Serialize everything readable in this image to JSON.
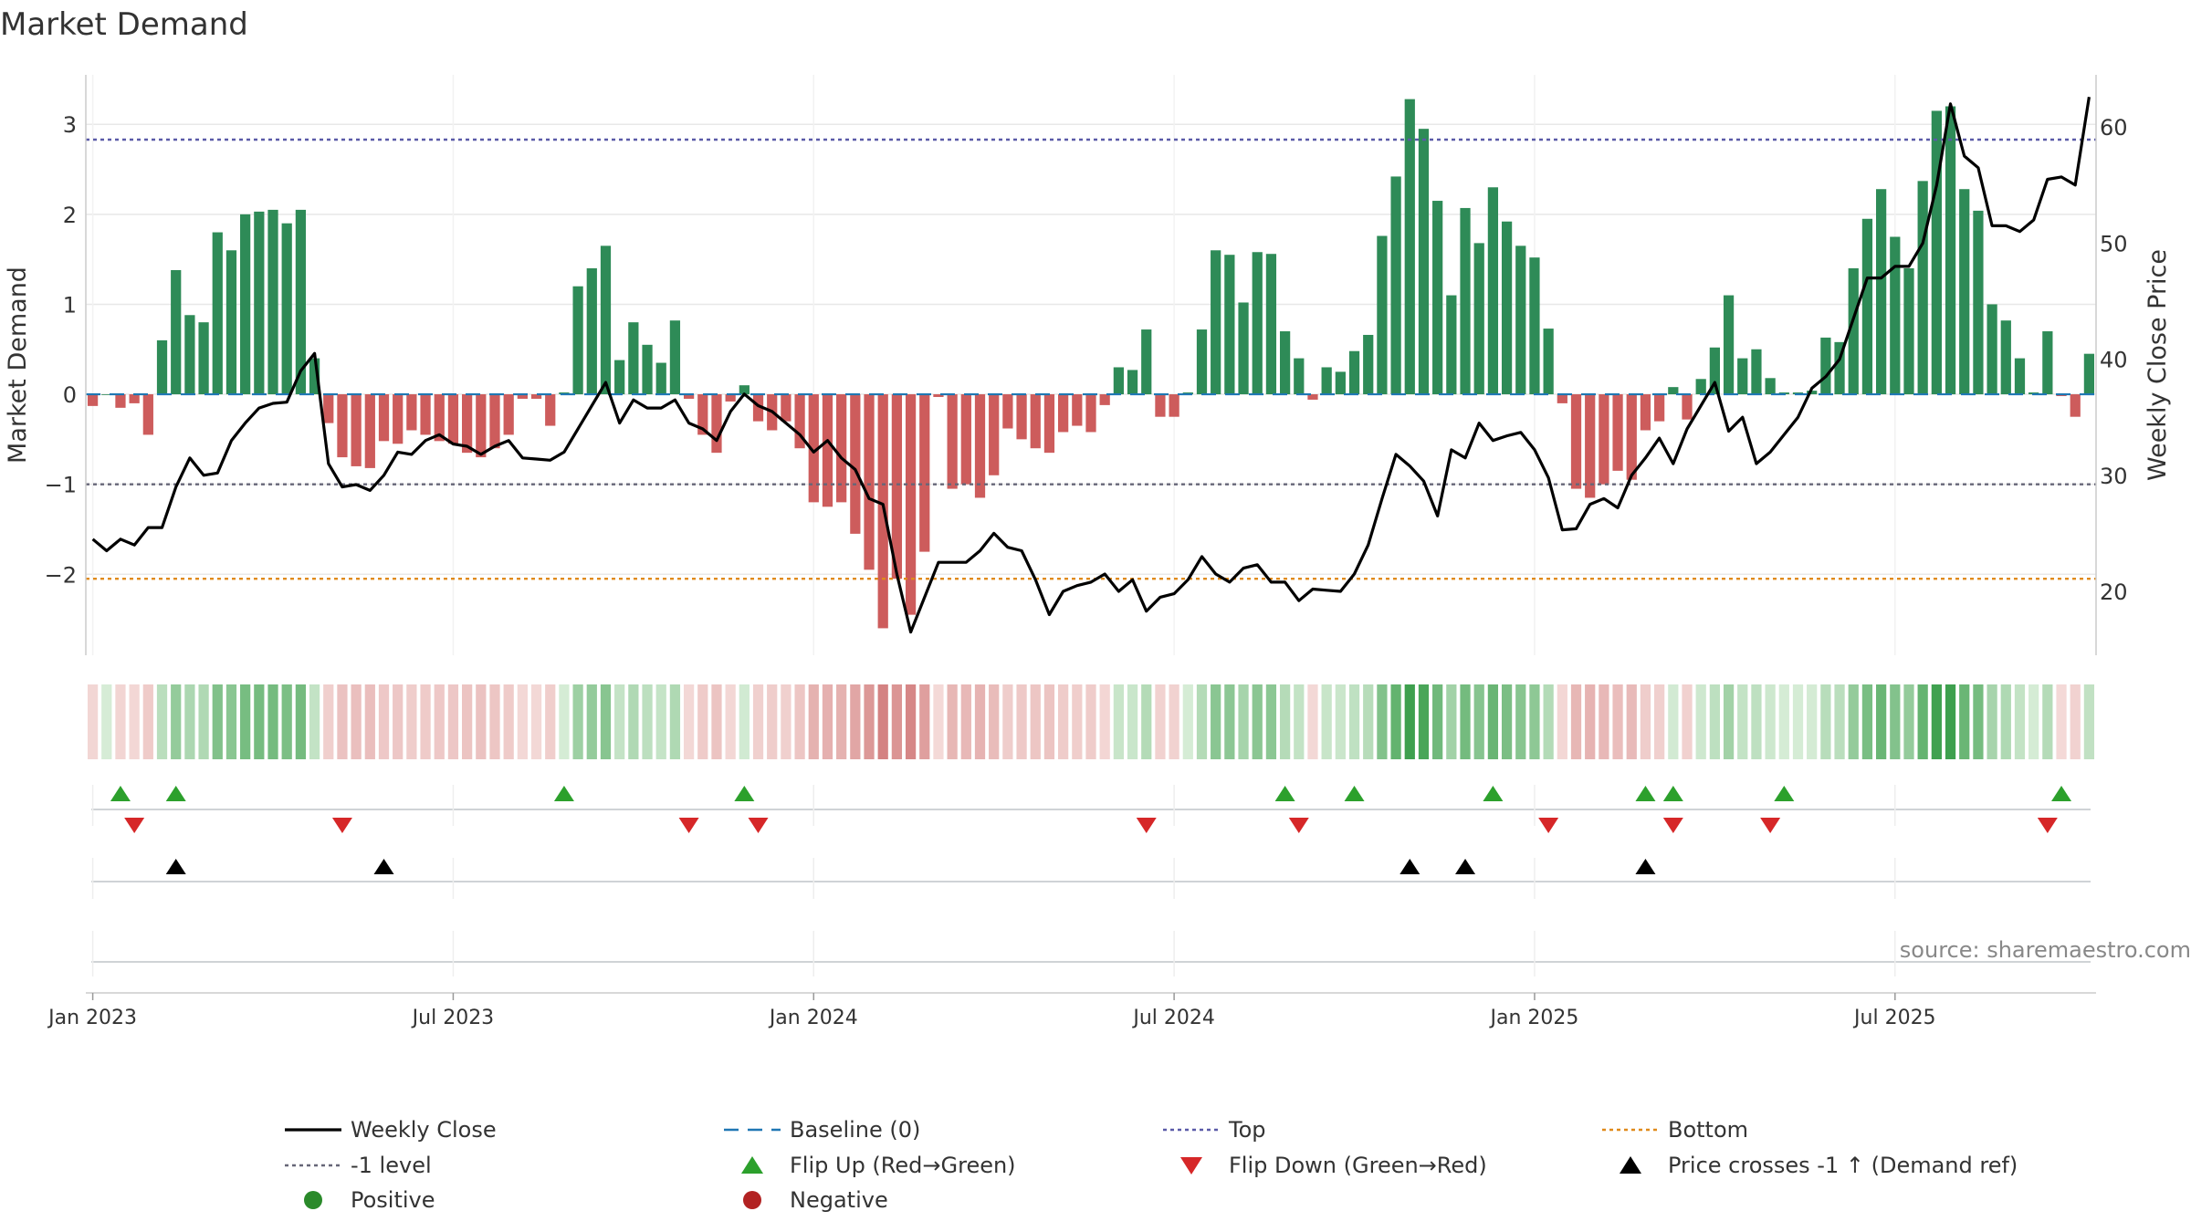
{
  "chart_data": {
    "type": "bar",
    "title": "Market Demand",
    "ylabel_left": "Market Demand",
    "ylabel_right": "Weekly Close Price",
    "ylim_left": [
      -2.9,
      3.55
    ],
    "ylim_right": [
      14.5,
      64.5
    ],
    "yticks_left": [
      3,
      2,
      1,
      0,
      -1,
      -2
    ],
    "ytick_labels_left": [
      "3",
      "2",
      "1",
      "0",
      "−1",
      "−2"
    ],
    "yticks_right": [
      60,
      50,
      40,
      30,
      20
    ],
    "ytick_labels_right": [
      "60",
      "50",
      "40",
      "30",
      "20"
    ],
    "x_ticks": [
      {
        "week": 1,
        "label": "Jan 2023"
      },
      {
        "week": 27,
        "label": "Jul 2023"
      },
      {
        "week": 53,
        "label": "Jan 2024"
      },
      {
        "week": 79,
        "label": "Jul 2024"
      },
      {
        "week": 105,
        "label": "Jan 2025"
      },
      {
        "week": 131,
        "label": "Jul 2025"
      }
    ],
    "levels": {
      "top": 2.83,
      "minus_one": -1.0,
      "bottom": -2.05,
      "baseline": 0
    },
    "demand": [
      -0.13,
      0,
      -0.15,
      -0.1,
      -0.45,
      0.6,
      1.38,
      0.88,
      0.8,
      1.8,
      1.6,
      2.0,
      2.03,
      2.05,
      1.9,
      2.05,
      0.4,
      -0.32,
      -0.7,
      -0.8,
      -0.82,
      -0.52,
      -0.55,
      -0.4,
      -0.45,
      -0.52,
      -0.55,
      -0.65,
      -0.7,
      -0.6,
      -0.45,
      -0.05,
      -0.05,
      -0.35,
      0.02,
      1.2,
      1.4,
      1.65,
      0.38,
      0.8,
      0.55,
      0.35,
      0.82,
      -0.05,
      -0.45,
      -0.65,
      -0.08,
      0.1,
      -0.3,
      -0.4,
      -0.3,
      -0.6,
      -1.2,
      -1.25,
      -1.2,
      -1.55,
      -1.95,
      -2.6,
      -2.05,
      -2.45,
      -1.75,
      -0.03,
      -1.05,
      -1.0,
      -1.15,
      -0.9,
      -0.38,
      -0.5,
      -0.6,
      -0.65,
      -0.42,
      -0.35,
      -0.42,
      -0.12,
      0.3,
      0.27,
      0.72,
      -0.25,
      -0.25,
      0.02,
      0.72,
      1.6,
      1.55,
      1.02,
      1.58,
      1.56,
      0.7,
      0.4,
      -0.06,
      0.3,
      0.25,
      0.48,
      0.66,
      1.76,
      2.42,
      3.28,
      2.95,
      2.15,
      1.1,
      2.07,
      1.68,
      2.3,
      1.92,
      1.65,
      1.52,
      0.73,
      -0.1,
      -1.05,
      -1.15,
      -1.0,
      -0.85,
      -0.95,
      -0.4,
      -0.3,
      0.08,
      -0.28,
      0.17,
      0.52,
      1.1,
      0.4,
      0.5,
      0.18,
      0.02,
      0.02,
      0.04,
      0.63,
      0.58,
      1.4,
      1.95,
      2.28,
      1.75,
      1.4,
      2.37,
      3.15,
      3.2,
      2.28,
      2.04,
      1.0,
      0.82,
      0.4,
      0.02,
      0.7,
      -0.02,
      -0.25,
      0.45
    ],
    "weekly_close": [
      24.5,
      23.5,
      24.5,
      24.0,
      25.5,
      25.5,
      29.0,
      31.5,
      30.0,
      30.2,
      33.0,
      34.5,
      35.8,
      36.2,
      36.3,
      39.0,
      40.5,
      31.0,
      29.0,
      29.2,
      28.7,
      30.0,
      32.0,
      31.8,
      33.0,
      33.5,
      32.7,
      32.5,
      31.8,
      32.5,
      33.0,
      31.5,
      31.4,
      31.3,
      32.0,
      34.0,
      36.0,
      38.0,
      34.5,
      36.5,
      35.8,
      35.8,
      36.5,
      34.5,
      34.0,
      33.0,
      35.5,
      37.0,
      36.0,
      35.5,
      34.5,
      33.5,
      32.0,
      33.0,
      31.5,
      30.5,
      28.0,
      27.5,
      21.5,
      16.5,
      19.5,
      22.5,
      22.5,
      22.5,
      23.5,
      25.0,
      23.8,
      23.5,
      21.0,
      18.0,
      20.0,
      20.5,
      20.8,
      21.5,
      20.0,
      21.0,
      18.3,
      19.5,
      19.8,
      21.0,
      23.0,
      21.5,
      20.8,
      22.0,
      22.3,
      20.8,
      20.8,
      19.2,
      20.2,
      20.1,
      20.0,
      21.5,
      24.0,
      28.0,
      31.8,
      30.8,
      29.5,
      26.5,
      32.2,
      31.5,
      34.5,
      33.0,
      33.4,
      33.7,
      32.2,
      29.8,
      25.3,
      25.4,
      27.5,
      28.0,
      27.2,
      30.0,
      31.5,
      33.2,
      31.0,
      34.0,
      36.0,
      38.0,
      33.8,
      35.0,
      31.0,
      32.0,
      33.5,
      35.0,
      37.5,
      38.5,
      40.0,
      43.5,
      47.0,
      47.0,
      48.0,
      48.0,
      50.0,
      55.0,
      62.0,
      57.5,
      56.5,
      51.5,
      51.5,
      51.0,
      52.0,
      55.5,
      55.7,
      55.0,
      62.6
    ],
    "flip_up_weeks": [
      3,
      7,
      35,
      48,
      87,
      92,
      102,
      113,
      115,
      123,
      143
    ],
    "flip_down_weeks": [
      4,
      19,
      44,
      49,
      77,
      88,
      106,
      115,
      122,
      142
    ],
    "price_cross_weeks": [
      7,
      22,
      96,
      100,
      113
    ],
    "source_note": "source: sharemaestro.com",
    "legend": [
      {
        "label": "Weekly Close",
        "symbol": "line",
        "color": "#000000"
      },
      {
        "label": "Baseline (0)",
        "symbol": "dash",
        "color": "#1f77b4"
      },
      {
        "label": "Top",
        "symbol": "dot",
        "color": "#5a5aa8"
      },
      {
        "label": "Bottom",
        "symbol": "dot",
        "color": "#e08a1a"
      },
      {
        "label": "-1 level",
        "symbol": "dot",
        "color": "#666677"
      },
      {
        "label": "Flip Up (Red→Green)",
        "symbol": "tri-up",
        "color": "#2ca02c"
      },
      {
        "label": "Flip Down (Green→Red)",
        "symbol": "tri-down",
        "color": "#d62728"
      },
      {
        "label": "Price crosses -1 ↑ (Demand ref)",
        "symbol": "tri-up",
        "color": "#000000"
      },
      {
        "label": "Positive",
        "symbol": "circle",
        "color": "#2a8a2a"
      },
      {
        "label": "Negative",
        "symbol": "circle",
        "color": "#b22222"
      }
    ],
    "colors": {
      "positive_bar": "#2e8b57",
      "negative_bar": "#cd5c5c",
      "close_line": "#000000",
      "baseline": "#1f77b4",
      "top": "#5a5aa8",
      "bottom": "#e08a1a",
      "minus_one": "#666677",
      "flip_up": "#2ca02c",
      "flip_down": "#d62728",
      "price_cross": "#000000",
      "grid": "#e8e8e8",
      "text": "#333333"
    }
  }
}
